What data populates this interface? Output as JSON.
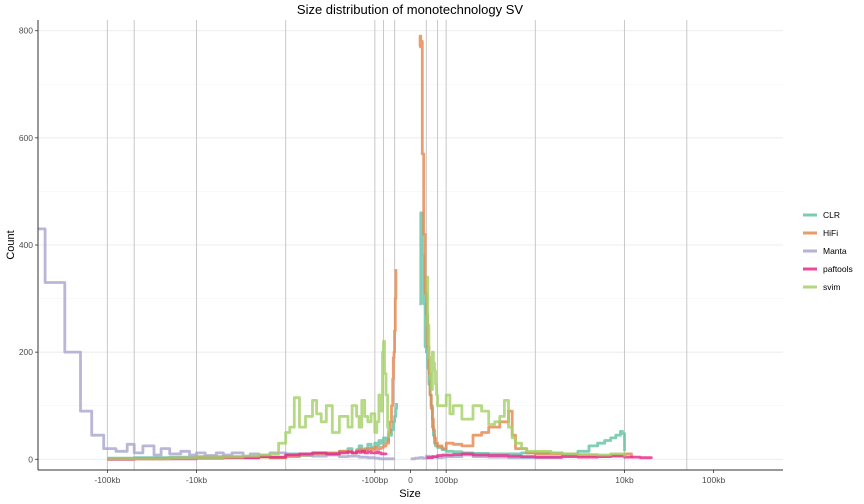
{
  "chart_data": {
    "type": "line",
    "title": "Size distribution of monotechnology SV",
    "xlabel": "Size",
    "ylabel": "Count",
    "x_scale": "signed-log10 (|size| in bp, 0 at center)",
    "xlim": [
      -600000,
      600000
    ],
    "ylim": [
      -20,
      820
    ],
    "y_ticks": [
      0,
      200,
      400,
      600,
      800
    ],
    "x_ticks": [
      {
        "value": -100000,
        "label": "-100kb"
      },
      {
        "value": -10000,
        "label": "-10kb"
      },
      {
        "value": -100,
        "label": "-100bp"
      },
      {
        "value": 0,
        "label": "0"
      },
      {
        "value": 100,
        "label": "100bp"
      },
      {
        "value": 10000,
        "label": "10kb"
      },
      {
        "value": 100000,
        "label": "100kb"
      }
    ],
    "vlines": [
      -100000,
      -50000,
      -10000,
      -1000,
      -100,
      -80,
      -60,
      60,
      80,
      100,
      1000,
      10000,
      50000
    ],
    "legend": {
      "position": "right",
      "title": ""
    },
    "series": [
      {
        "name": "CLR",
        "color": "#66c2a5",
        "points": [
          [
            -100000,
            2
          ],
          [
            -50000,
            3
          ],
          [
            -20000,
            4
          ],
          [
            -10000,
            5
          ],
          [
            -5000,
            5
          ],
          [
            -2000,
            6
          ],
          [
            -1500,
            3
          ],
          [
            -1000,
            10
          ],
          [
            -700,
            7
          ],
          [
            -500,
            12
          ],
          [
            -350,
            9
          ],
          [
            -250,
            15
          ],
          [
            -200,
            20
          ],
          [
            -180,
            12
          ],
          [
            -160,
            18
          ],
          [
            -150,
            25
          ],
          [
            -140,
            15
          ],
          [
            -130,
            20
          ],
          [
            -120,
            28
          ],
          [
            -110,
            22
          ],
          [
            -100,
            30
          ],
          [
            -95,
            25
          ],
          [
            -90,
            35
          ],
          [
            -85,
            30
          ],
          [
            -80,
            40
          ],
          [
            -75,
            35
          ],
          [
            -70,
            45
          ],
          [
            -65,
            55
          ],
          [
            -62,
            70
          ],
          [
            -60,
            80
          ],
          [
            -58,
            95
          ],
          [
            -57,
            105
          ],
          [
            50,
            290
          ],
          [
            52,
            460
          ],
          [
            54,
            380
          ],
          [
            56,
            290
          ],
          [
            58,
            210
          ],
          [
            60,
            200
          ],
          [
            62,
            170
          ],
          [
            64,
            140
          ],
          [
            66,
            120
          ],
          [
            68,
            100
          ],
          [
            70,
            60
          ],
          [
            72,
            45
          ],
          [
            74,
            30
          ],
          [
            76,
            25
          ],
          [
            80,
            22
          ],
          [
            90,
            18
          ],
          [
            100,
            15
          ],
          [
            120,
            14
          ],
          [
            150,
            12
          ],
          [
            200,
            11
          ],
          [
            300,
            10
          ],
          [
            500,
            10
          ],
          [
            700,
            12
          ],
          [
            1000,
            12
          ],
          [
            1500,
            12
          ],
          [
            2000,
            10
          ],
          [
            3000,
            15
          ],
          [
            4000,
            25
          ],
          [
            5000,
            30
          ],
          [
            6000,
            35
          ],
          [
            7000,
            40
          ],
          [
            8000,
            45
          ],
          [
            9000,
            52
          ],
          [
            9500,
            48
          ],
          [
            10000,
            15
          ]
        ]
      },
      {
        "name": "HiFi",
        "color": "#e5894f",
        "points": [
          [
            -100000,
            1
          ],
          [
            -50000,
            1
          ],
          [
            -20000,
            2
          ],
          [
            -10000,
            3
          ],
          [
            -5000,
            3
          ],
          [
            -2000,
            4
          ],
          [
            -1500,
            3
          ],
          [
            -1000,
            5
          ],
          [
            -700,
            8
          ],
          [
            -500,
            10
          ],
          [
            -350,
            12
          ],
          [
            -250,
            15
          ],
          [
            -200,
            14
          ],
          [
            -180,
            12
          ],
          [
            -160,
            16
          ],
          [
            -150,
            18
          ],
          [
            -140,
            15
          ],
          [
            -130,
            18
          ],
          [
            -120,
            20
          ],
          [
            -110,
            18
          ],
          [
            -100,
            22
          ],
          [
            -95,
            20
          ],
          [
            -90,
            20
          ],
          [
            -85,
            22
          ],
          [
            -80,
            25
          ],
          [
            -75,
            30
          ],
          [
            -70,
            50
          ],
          [
            -67,
            70
          ],
          [
            -65,
            100
          ],
          [
            -63,
            150
          ],
          [
            -62,
            190
          ],
          [
            -61,
            200
          ],
          [
            -60,
            240
          ],
          [
            -59,
            300
          ],
          [
            -58,
            355
          ],
          [
            50,
            770
          ],
          [
            51,
            790
          ],
          [
            52,
            780
          ],
          [
            54,
            570
          ],
          [
            56,
            420
          ],
          [
            58,
            310
          ],
          [
            60,
            270
          ],
          [
            62,
            210
          ],
          [
            64,
            160
          ],
          [
            66,
            120
          ],
          [
            68,
            95
          ],
          [
            70,
            75
          ],
          [
            72,
            55
          ],
          [
            74,
            40
          ],
          [
            76,
            30
          ],
          [
            80,
            25
          ],
          [
            90,
            20
          ],
          [
            100,
            30
          ],
          [
            120,
            28
          ],
          [
            150,
            25
          ],
          [
            200,
            45
          ],
          [
            250,
            50
          ],
          [
            300,
            60
          ],
          [
            400,
            70
          ],
          [
            500,
            90
          ],
          [
            550,
            45
          ],
          [
            600,
            20
          ],
          [
            800,
            12
          ],
          [
            1000,
            10
          ],
          [
            1500,
            10
          ],
          [
            2000,
            8
          ],
          [
            3000,
            7
          ],
          [
            5000,
            6
          ],
          [
            7000,
            8
          ],
          [
            10000,
            10
          ],
          [
            12000,
            3
          ]
        ]
      },
      {
        "name": "Manta",
        "color": "#a9a6ce",
        "points": [
          [
            -600000,
            430
          ],
          [
            -500000,
            330
          ],
          [
            -300000,
            200
          ],
          [
            -200000,
            90
          ],
          [
            -150000,
            45
          ],
          [
            -110000,
            20
          ],
          [
            -100000,
            20
          ],
          [
            -80000,
            15
          ],
          [
            -60000,
            28
          ],
          [
            -50000,
            12
          ],
          [
            -40000,
            25
          ],
          [
            -30000,
            8
          ],
          [
            -25000,
            20
          ],
          [
            -20000,
            10
          ],
          [
            -15000,
            15
          ],
          [
            -12000,
            8
          ],
          [
            -10000,
            12
          ],
          [
            -8000,
            7
          ],
          [
            -6000,
            12
          ],
          [
            -5000,
            8
          ],
          [
            -4000,
            12
          ],
          [
            -3000,
            6
          ],
          [
            -2500,
            10
          ],
          [
            -2000,
            8
          ],
          [
            -1500,
            12
          ],
          [
            -1000,
            8
          ],
          [
            -700,
            10
          ],
          [
            -500,
            6
          ],
          [
            -350,
            8
          ],
          [
            -250,
            5
          ],
          [
            -200,
            6
          ],
          [
            -150,
            4
          ],
          [
            -120,
            3
          ],
          [
            -100,
            2
          ],
          [
            -90,
            1
          ],
          [
            -80,
            1
          ],
          [
            -70,
            1
          ],
          [
            -60,
            1
          ],
          [
            40,
            1
          ],
          [
            45,
            2
          ],
          [
            50,
            3
          ],
          [
            55,
            2
          ],
          [
            60,
            6
          ],
          [
            65,
            5
          ],
          [
            70,
            4
          ],
          [
            80,
            3
          ],
          [
            90,
            4
          ],
          [
            100,
            5
          ],
          [
            150,
            8
          ],
          [
            200,
            5
          ],
          [
            300,
            4
          ],
          [
            500,
            3
          ],
          [
            1000,
            3
          ],
          [
            2000,
            3
          ]
        ]
      },
      {
        "name": "paftools",
        "color": "#e7298a",
        "points": [
          [
            -100000,
            0
          ],
          [
            -50000,
            1
          ],
          [
            -20000,
            1
          ],
          [
            -10000,
            2
          ],
          [
            -5000,
            3
          ],
          [
            -3000,
            3
          ],
          [
            -2000,
            5
          ],
          [
            -1500,
            4
          ],
          [
            -1000,
            8
          ],
          [
            -700,
            10
          ],
          [
            -500,
            12
          ],
          [
            -350,
            10
          ],
          [
            -250,
            12
          ],
          [
            -200,
            14
          ],
          [
            -180,
            12
          ],
          [
            -160,
            14
          ],
          [
            -150,
            13
          ],
          [
            -140,
            15
          ],
          [
            -130,
            12
          ],
          [
            -120,
            14
          ],
          [
            -110,
            12
          ],
          [
            -100,
            12
          ],
          [
            -95,
            14
          ],
          [
            -90,
            12
          ],
          [
            -85,
            10
          ],
          [
            -80,
            10
          ],
          [
            -75,
            8
          ],
          [
            60,
            3
          ],
          [
            70,
            5
          ],
          [
            80,
            7
          ],
          [
            90,
            8
          ],
          [
            100,
            8
          ],
          [
            120,
            9
          ],
          [
            150,
            10
          ],
          [
            200,
            8
          ],
          [
            300,
            7
          ],
          [
            500,
            6
          ],
          [
            700,
            5
          ],
          [
            1000,
            4
          ],
          [
            2000,
            5
          ],
          [
            3000,
            4
          ],
          [
            5000,
            5
          ],
          [
            7000,
            6
          ],
          [
            10000,
            4
          ],
          [
            15000,
            3
          ],
          [
            20000,
            1
          ]
        ]
      },
      {
        "name": "svim",
        "color": "#a6d16a",
        "points": [
          [
            -100000,
            1
          ],
          [
            -50000,
            1
          ],
          [
            -20000,
            2
          ],
          [
            -10000,
            3
          ],
          [
            -5000,
            4
          ],
          [
            -3000,
            6
          ],
          [
            -2000,
            8
          ],
          [
            -1500,
            10
          ],
          [
            -1200,
            30
          ],
          [
            -1000,
            50
          ],
          [
            -900,
            60
          ],
          [
            -800,
            115
          ],
          [
            -700,
            60
          ],
          [
            -600,
            80
          ],
          [
            -500,
            110
          ],
          [
            -450,
            85
          ],
          [
            -400,
            70
          ],
          [
            -350,
            100
          ],
          [
            -300,
            50
          ],
          [
            -250,
            80
          ],
          [
            -200,
            60
          ],
          [
            -180,
            100
          ],
          [
            -160,
            80
          ],
          [
            -150,
            60
          ],
          [
            -140,
            110
          ],
          [
            -130,
            80
          ],
          [
            -120,
            70
          ],
          [
            -110,
            85
          ],
          [
            -100,
            50
          ],
          [
            -95,
            70
          ],
          [
            -90,
            120
          ],
          [
            -85,
            90
          ],
          [
            -82,
            200
          ],
          [
            -80,
            220
          ],
          [
            -78,
            160
          ],
          [
            -75,
            120
          ],
          [
            -72,
            60
          ],
          [
            -70,
            40
          ],
          [
            60,
            340
          ],
          [
            62,
            250
          ],
          [
            64,
            190
          ],
          [
            66,
            150
          ],
          [
            68,
            130
          ],
          [
            70,
            200
          ],
          [
            72,
            180
          ],
          [
            74,
            165
          ],
          [
            76,
            140
          ],
          [
            78,
            120
          ],
          [
            80,
            100
          ],
          [
            90,
            100
          ],
          [
            100,
            120
          ],
          [
            110,
            85
          ],
          [
            120,
            100
          ],
          [
            150,
            75
          ],
          [
            200,
            100
          ],
          [
            250,
            90
          ],
          [
            300,
            65
          ],
          [
            350,
            70
          ],
          [
            400,
            80
          ],
          [
            450,
            110
          ],
          [
            500,
            60
          ],
          [
            550,
            40
          ],
          [
            600,
            30
          ],
          [
            700,
            20
          ],
          [
            800,
            15
          ],
          [
            1000,
            15
          ],
          [
            1500,
            12
          ],
          [
            2000,
            10
          ],
          [
            3000,
            9
          ],
          [
            5000,
            8
          ],
          [
            7000,
            10
          ],
          [
            10000,
            5
          ]
        ]
      }
    ]
  }
}
